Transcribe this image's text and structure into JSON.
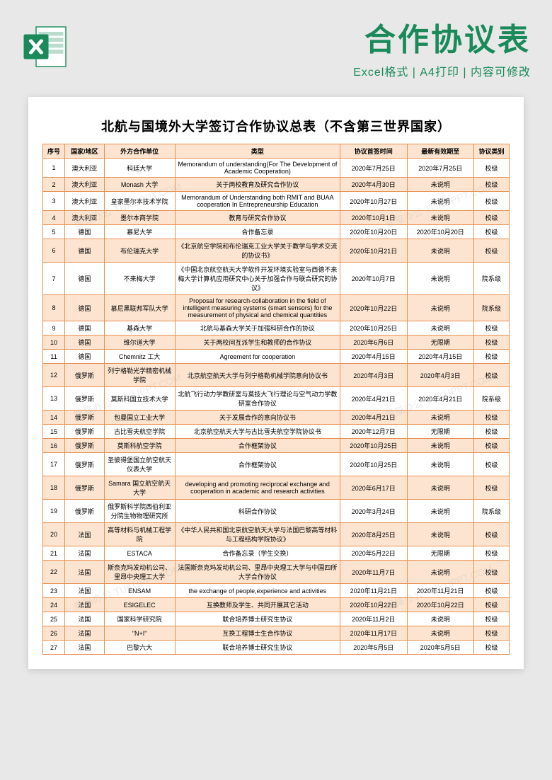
{
  "header": {
    "title": "合作协议表",
    "subtitle": "Excel格式 | A4打印 | 内容可修改"
  },
  "doc_title": "北航与国境外大学签订合作协议总表（不含第三世界国家）",
  "watermark": "熊猫办公 TUKUPPT.COM",
  "columns": [
    "序号",
    "国家/地区",
    "外方合作单位",
    "类型",
    "协议首签时间",
    "最新有效期至",
    "协议类别"
  ],
  "rows": [
    [
      "1",
      "澳大利亚",
      "科廷大学",
      "Memorandum of understanding(For The Development of Academic Cooperation)",
      "2020年7月25日",
      "2020年7月25日",
      "校级"
    ],
    [
      "2",
      "澳大利亚",
      "Monash 大学",
      "关于两校教育及研究合作协议",
      "2020年4月30日",
      "未说明",
      "校级"
    ],
    [
      "3",
      "澳大利亚",
      "皇家墨尔本技术学院",
      "Memorandum of Understanding both RMIT and BUAA cooperation In Entrepreneurship Education",
      "2020年10月27日",
      "未说明",
      "校级"
    ],
    [
      "4",
      "澳大利亚",
      "墨尔本商学院",
      "教育与研究合作协议",
      "2020年10月1日",
      "未说明",
      "校级"
    ],
    [
      "5",
      "德国",
      "慕尼大学",
      "合作备忘录",
      "2020年10月20日",
      "2020年10月20日",
      "校级"
    ],
    [
      "6",
      "德国",
      "布伦瑞克大学",
      "《北京航空学院和布伦瑞克工业大学关于教学与学术交流的协议书》",
      "2020年10月21日",
      "未说明",
      "校级"
    ],
    [
      "7",
      "德国",
      "不来梅大学",
      "《中国北京航空航天大学软件开发环境实验室与西德不来梅大学计算机应用研究中心关于加强合作与联合研究的协议》",
      "2020年10月7日",
      "未说明",
      "院系级"
    ],
    [
      "8",
      "德国",
      "慕尼黑联邦军队大学",
      "Proposal for research-collaboration in the field of intelligent measuring systems (smart sensors) for the measurement of physical and chemical quantities",
      "2020年10月22日",
      "未说明",
      "院系级"
    ],
    [
      "9",
      "德国",
      "基森大学",
      "北航与基森大学关于加强科研合作的协议",
      "2020年10月25日",
      "未说明",
      "校级"
    ],
    [
      "10",
      "德国",
      "维尔道大学",
      "关于两校间互派学生和教师的合作协议",
      "2020年6月6日",
      "无限期",
      "校级"
    ],
    [
      "11",
      "德国",
      "Chemnitz 工大",
      "Agreement for cooperation",
      "2020年4月15日",
      "2020年4月15日",
      "校级"
    ],
    [
      "12",
      "俄罗斯",
      "列宁格勒光学精密机械学院",
      "北京航空航天大学与列宁格勒机械学院意向协议书",
      "2020年4月3日",
      "2020年4月3日",
      "校级"
    ],
    [
      "13",
      "俄罗斯",
      "莫斯科国立技术大学",
      "北航飞行动力学教研室与莫技大飞行理论与空气动力学教研室合作协议",
      "2020年4月21日",
      "2020年4月21日",
      "院系级"
    ],
    [
      "14",
      "俄罗斯",
      "包曼国立工业大学",
      "关于发展合作的意向协议书",
      "2020年4月21日",
      "未说明",
      "校级"
    ],
    [
      "15",
      "俄罗斯",
      "古比雪夫航空学院",
      "北京航空航天大学与古比雪夫航空学院协议书",
      "2020年12月7日",
      "无限期",
      "校级"
    ],
    [
      "16",
      "俄罗斯",
      "莫斯科航空学院",
      "合作框架协议",
      "2020年10月25日",
      "未说明",
      "校级"
    ],
    [
      "17",
      "俄罗斯",
      "圣彼得堡国立航空航天仪表大学",
      "合作框架协议",
      "2020年10月25日",
      "未说明",
      "校级"
    ],
    [
      "18",
      "俄罗斯",
      "Samara 国立航空航天大学",
      "developing and promoting reciprocal exchange and cooperation in academic and research activities",
      "2020年6月17日",
      "未说明",
      "校级"
    ],
    [
      "19",
      "俄罗斯",
      "俄罗斯科学院西伯利亚分院生物物理研究所",
      "科研合作协议",
      "2020年3月24日",
      "未说明",
      "院系级"
    ],
    [
      "20",
      "法国",
      "高等材料与机械工程学院",
      "《中华人民共和国北京航空航天大学与法国巴黎高等材料与工程结构学院协议》",
      "2020年8月25日",
      "未说明",
      "校级"
    ],
    [
      "21",
      "法国",
      "ESTACA",
      "合作备忘录（学生交换）",
      "2020年5月22日",
      "无限期",
      "校级"
    ],
    [
      "22",
      "法国",
      "斯奈克玛发动机公司、里昂中央理工大学",
      "法国斯奈克玛发动机公司、里昂中央理工大学与中国四所大学合作协议",
      "2020年11月7日",
      "未说明",
      "校级"
    ],
    [
      "23",
      "法国",
      "ENSAM",
      "the exchange of people,experience and activities",
      "2020年11月21日",
      "2020年11月21日",
      "校级"
    ],
    [
      "24",
      "法国",
      "ESIGELEC",
      "互换教师及学生、共同开展其它活动",
      "2020年10月22日",
      "2020年10月22日",
      "校级"
    ],
    [
      "25",
      "法国",
      "国家科学研究院",
      "联合培养博士研究生协议",
      "2020年11月2日",
      "未说明",
      "校级"
    ],
    [
      "26",
      "法国",
      "\"N+I\"",
      "互换工程博士生合作协议",
      "2020年11月17日",
      "未说明",
      "校级"
    ],
    [
      "27",
      "法国",
      "巴黎六大",
      "联合培养博士研究生协议",
      "2020年5月5日",
      "2020年5月5日",
      "校级"
    ]
  ],
  "colors": {
    "accent": "#1a8a5a",
    "border": "#e89050",
    "zebra": "#fce4d0",
    "background": "#e8e8e8"
  }
}
